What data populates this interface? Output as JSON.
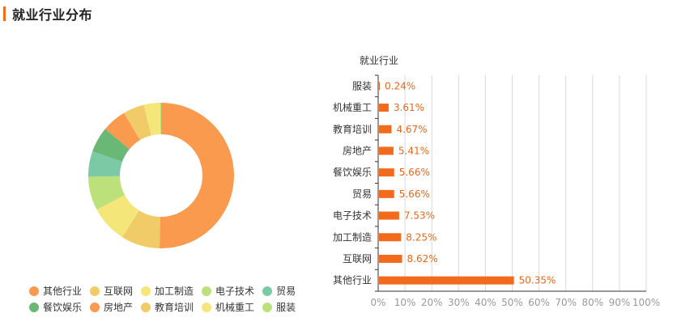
{
  "page": {
    "title": "就业行业分布",
    "accent_color": "#f26b1d"
  },
  "chart_data": [
    {
      "type": "pie",
      "variant": "donut",
      "labels": [
        "其他行业",
        "互联网",
        "加工制造",
        "电子技术",
        "贸易",
        "餐饮娱乐",
        "房地产",
        "教育培训",
        "机械重工",
        "服装"
      ],
      "values": [
        50.35,
        8.62,
        8.25,
        7.53,
        5.66,
        5.66,
        5.41,
        4.67,
        3.61,
        0.24
      ],
      "colors": [
        "#f99a4f",
        "#f0cb67",
        "#f4e679",
        "#bce07a",
        "#7cc9a6",
        "#69b876",
        "#f99a4f",
        "#f0cb67",
        "#f4e679",
        "#bce07a"
      ],
      "legend_position": "bottom"
    },
    {
      "type": "bar",
      "orientation": "horizontal",
      "title": "就业行业",
      "categories": [
        "服装",
        "机械重工",
        "教育培训",
        "房地产",
        "餐饮娱乐",
        "贸易",
        "电子技术",
        "加工制造",
        "互联网",
        "其他行业"
      ],
      "values": [
        0.24,
        3.61,
        4.67,
        5.41,
        5.66,
        5.66,
        7.53,
        8.25,
        8.62,
        50.35
      ],
      "value_labels": [
        "0.24%",
        "3.61%",
        "4.67%",
        "5.41%",
        "5.66%",
        "5.66%",
        "7.53%",
        "8.25%",
        "8.62%",
        "50.35%"
      ],
      "xlim": [
        0,
        100
      ],
      "xticks": [
        "0%",
        "10%",
        "20%",
        "30%",
        "40%",
        "50%",
        "60%",
        "70%",
        "80%",
        "90%",
        "100%"
      ],
      "bar_color": "#f26b1d",
      "label_color": "#e8681a",
      "grid": true
    }
  ]
}
